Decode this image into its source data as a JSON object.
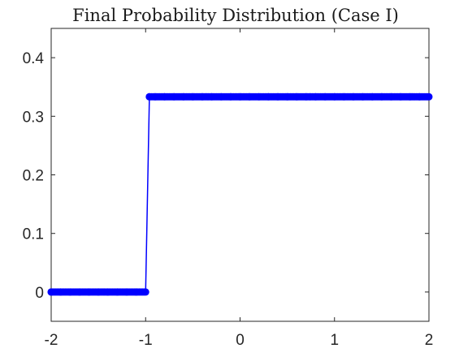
{
  "chart_data": {
    "type": "line",
    "title": "Final Probability Distribution (Case I)",
    "xlabel": "",
    "ylabel": "",
    "xlim": [
      -2,
      2
    ],
    "ylim": [
      -0.05,
      0.45
    ],
    "x_ticks": [
      -2,
      -1,
      0,
      1,
      2
    ],
    "x_tick_labels": [
      "-2",
      "-1",
      "0",
      "1",
      "2"
    ],
    "y_ticks": [
      0,
      0.1,
      0.2,
      0.3,
      0.4
    ],
    "y_tick_labels": [
      "0",
      "0.1",
      "0.2",
      "0.3",
      "0.4"
    ],
    "grid": false,
    "series_color": "#0000ff",
    "series": [
      {
        "x": [
          -2.0,
          -1.9,
          -1.8,
          -1.7,
          -1.6,
          -1.5,
          -1.4,
          -1.3,
          -1.2,
          -1.1,
          -1.0,
          -0.96,
          -0.9,
          -0.8,
          -0.7,
          -0.6,
          -0.5,
          -0.4,
          -0.3,
          -0.2,
          -0.1,
          0.0,
          0.1,
          0.2,
          0.3,
          0.4,
          0.5,
          0.6,
          0.7,
          0.8,
          0.9,
          1.0,
          1.1,
          1.2,
          1.3,
          1.4,
          1.5,
          1.6,
          1.7,
          1.8,
          1.9,
          2.0
        ],
        "y": [
          0,
          0,
          0,
          0,
          0,
          0,
          0,
          0,
          0,
          0,
          0,
          0.3333,
          0.3333,
          0.3333,
          0.3333,
          0.3333,
          0.3333,
          0.3333,
          0.3333,
          0.3333,
          0.3333,
          0.3333,
          0.3333,
          0.3333,
          0.3333,
          0.3333,
          0.3333,
          0.3333,
          0.3333,
          0.3333,
          0.3333,
          0.3333,
          0.3333,
          0.3333,
          0.3333,
          0.3333,
          0.3333,
          0.3333,
          0.3333,
          0.3333,
          0.3333,
          0.3333
        ]
      }
    ]
  }
}
